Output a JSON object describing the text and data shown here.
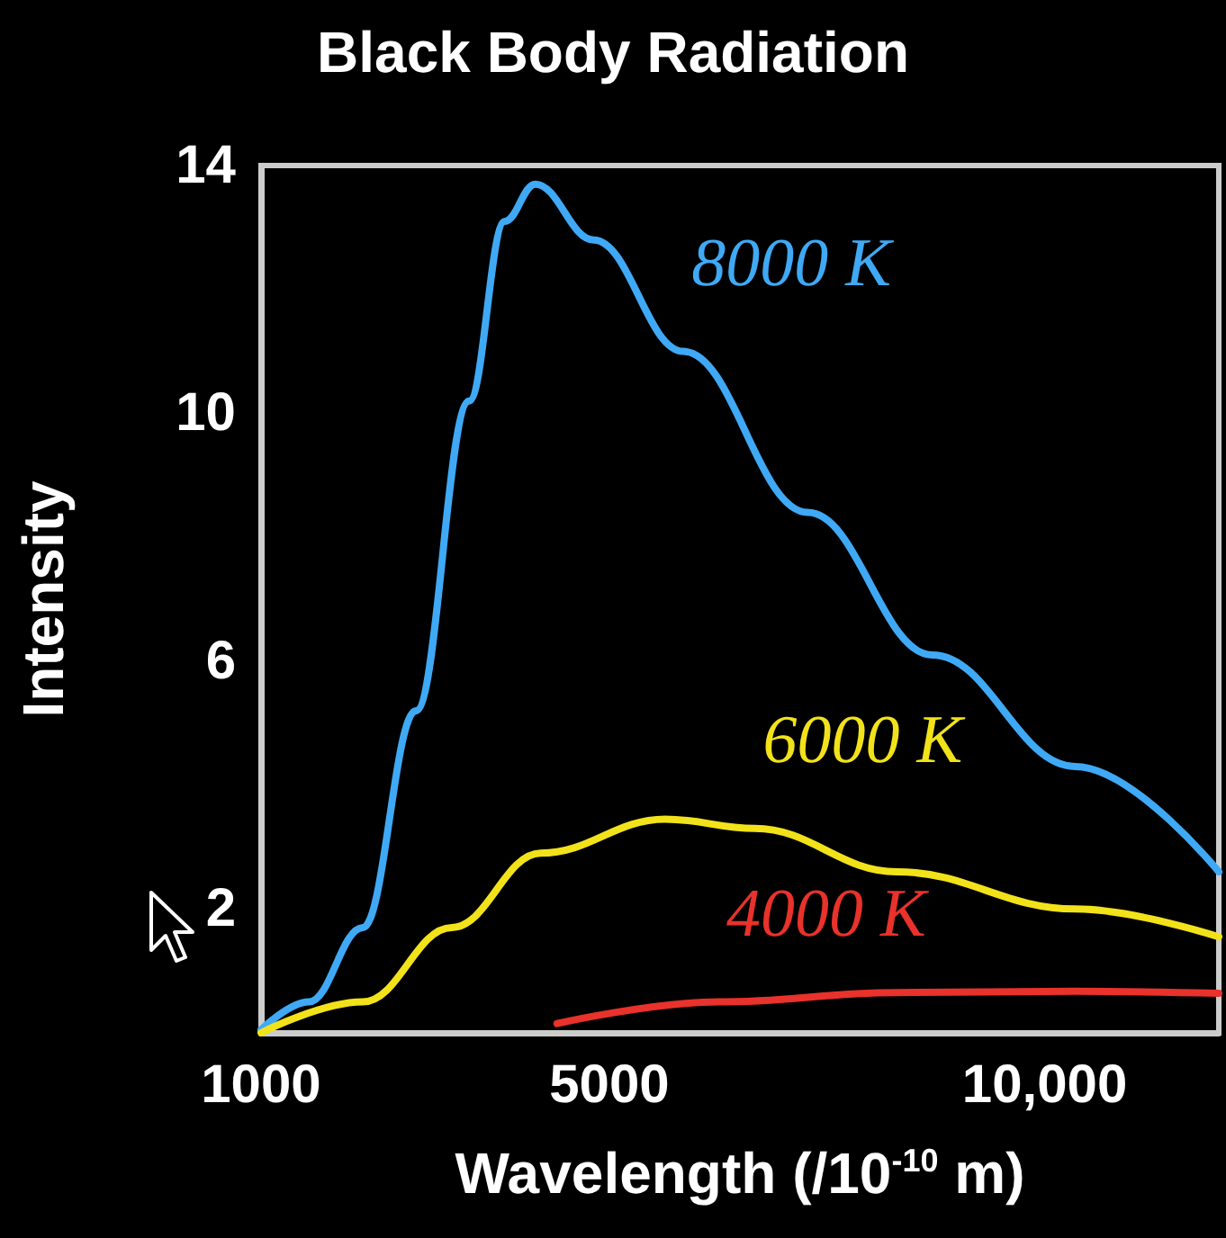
{
  "chart_data": {
    "type": "line",
    "title": "Black Body Radiation",
    "xlabel": "Wavelength (/10$^{-10}$ m)",
    "ylabel": "Intensity",
    "xlim": [
      1000,
      12000
    ],
    "ylim": [
      0,
      14
    ],
    "xticks": [
      1000,
      5000,
      {
        "value": 10000,
        "label": "10,000"
      }
    ],
    "yticks": [
      {
        "value": 2,
        "label": "2"
      },
      {
        "value": 6,
        "label": "6"
      },
      {
        "value": 10,
        "label": "10"
      },
      {
        "value": 14,
        "label": "14"
      }
    ],
    "grid": false,
    "legend": false,
    "marker": "none",
    "line_style": "solid",
    "series": [
      {
        "name": "8000 K",
        "color": "#3fa9f5",
        "x": [
          1000,
          1550,
          2170,
          2780,
          3390,
          3800,
          4150,
          4820,
          5850,
          7280,
          8710,
          10350,
          12000
        ],
        "values": [
          0.05,
          0.5,
          1.7,
          5.2,
          10.2,
          13.1,
          13.7,
          12.8,
          11,
          8.4,
          6.1,
          4.3,
          2.6
        ]
      },
      {
        "name": "6000 K",
        "color": "#f2e21a",
        "x": [
          1000,
          2170,
          3190,
          4210,
          5640,
          6670,
          8300,
          10350,
          12000
        ],
        "values": [
          0,
          0.5,
          1.7,
          2.9,
          3.45,
          3.3,
          2.6,
          2.0,
          1.55
        ]
      },
      {
        "name": "4000 K",
        "color": "#e8322b",
        "x": [
          4400,
          6250,
          8300,
          10350,
          12000
        ],
        "values": [
          0.15,
          0.5,
          0.65,
          0.67,
          0.64
        ]
      }
    ]
  }
}
